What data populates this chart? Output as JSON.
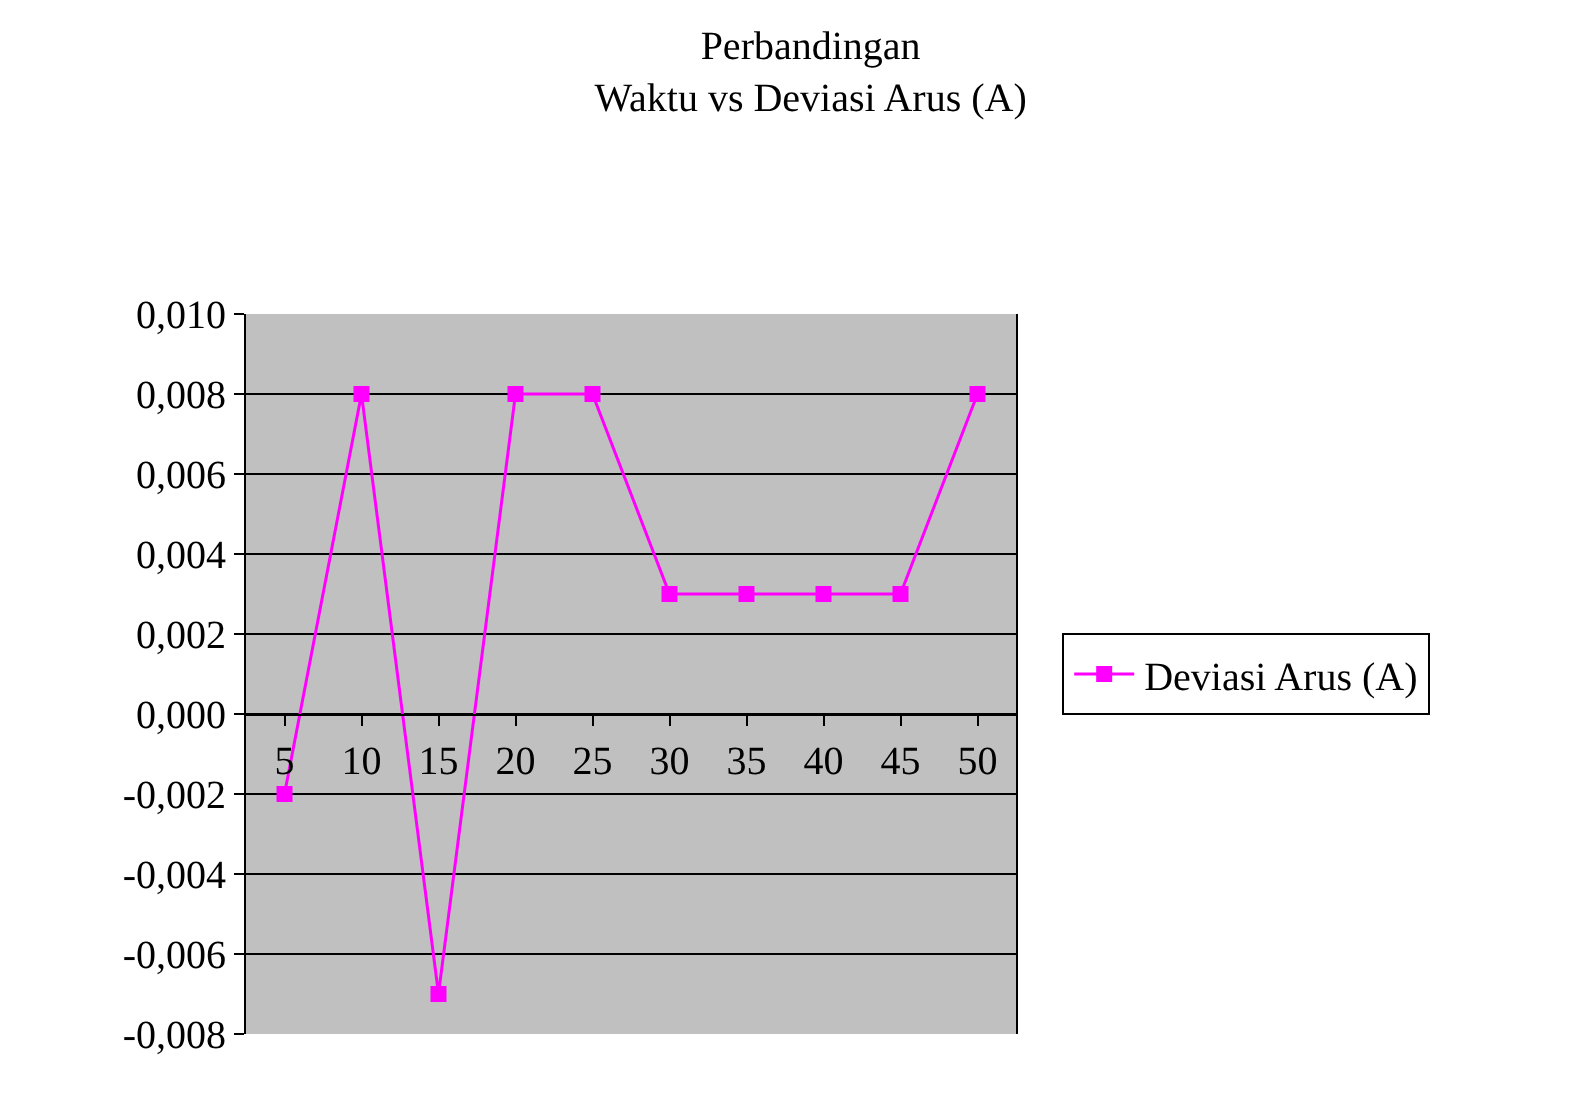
{
  "chart_data": {
    "type": "line",
    "title": "Perbandingan\nWaktu vs Deviasi Arus (A)",
    "categories": [
      "5",
      "10",
      "15",
      "20",
      "25",
      "30",
      "35",
      "40",
      "45",
      "50"
    ],
    "series": [
      {
        "name": "Deviasi Arus (A)",
        "color": "#ff00ff",
        "values": [
          -0.002,
          0.008,
          -0.007,
          0.008,
          0.008,
          0.003,
          0.003,
          0.003,
          0.003,
          0.008
        ]
      }
    ],
    "ylim": [
      -0.008,
      0.01
    ],
    "yticks": [
      {
        "value": -0.008,
        "label": "-0,008"
      },
      {
        "value": -0.006,
        "label": "-0,006"
      },
      {
        "value": -0.004,
        "label": "-0,004"
      },
      {
        "value": -0.002,
        "label": "-0,002"
      },
      {
        "value": 0,
        "label": "0,000"
      },
      {
        "value": 0.002,
        "label": "0,002"
      },
      {
        "value": 0.004,
        "label": "0,004"
      },
      {
        "value": 0.006,
        "label": "0,006"
      },
      {
        "value": 0.008,
        "label": "0,008"
      },
      {
        "value": 0.01,
        "label": "0,010"
      }
    ],
    "grid": "y",
    "legend": "right",
    "marker": "square",
    "line_style": "solid"
  }
}
